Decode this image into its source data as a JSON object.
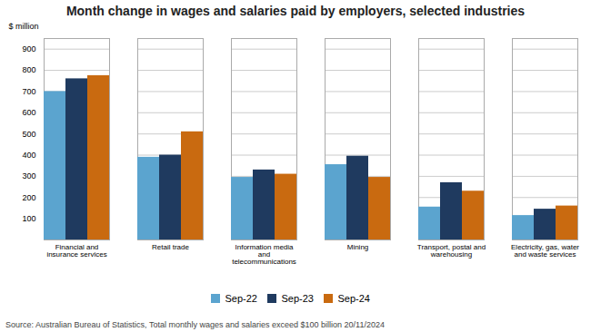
{
  "chart_data": {
    "type": "bar",
    "title": "Month change in wages and salaries paid by employers, selected industries",
    "ylabel": "$ million",
    "caption": "Source: Australian Bureau of Statistics, Total monthly wages and salaries exceed $100 billion 20/11/2024",
    "categories": [
      "Financial and\ninsurance services",
      "Retail trade",
      "Information media\nand\ntelecommunications",
      "Mining",
      "Transport, postal and\nwarehousing",
      "Electricity, gas, water\nand waste services"
    ],
    "series": [
      {
        "name": "Sep-22",
        "color": "#5BA4CF",
        "values": [
          700,
          390,
          295,
          355,
          155,
          115
        ]
      },
      {
        "name": "Sep-23",
        "color": "#1F3A5F",
        "values": [
          760,
          400,
          330,
          395,
          270,
          145
        ]
      },
      {
        "name": "Sep-24",
        "color": "#C96A10",
        "values": [
          775,
          510,
          310,
          295,
          230,
          160
        ]
      }
    ],
    "ylim": [
      0,
      950
    ],
    "yticks": [
      100,
      200,
      300,
      400,
      500,
      600,
      700,
      800,
      900
    ],
    "grid": true,
    "legend": "bottom"
  }
}
